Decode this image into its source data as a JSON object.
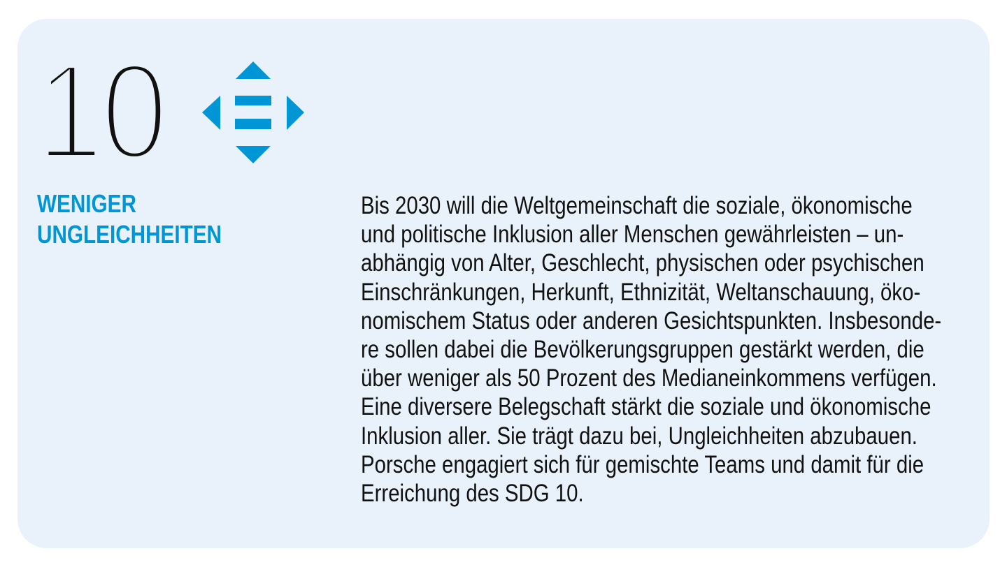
{
  "goal": {
    "number": "10",
    "icon": "reduced-inequalities-arrows-icon",
    "title_lines": [
      "WENIGER",
      "UNGLEICHHEITEN"
    ],
    "colors": {
      "accent": "#0096d6",
      "background": "#e9f2fa",
      "text": "#111111"
    }
  },
  "body": {
    "lines": [
      "Bis 2030 will die Weltgemeinschaft die soziale, ökonomische",
      "und politische Inklusion aller Menschen gewährleisten – un-",
      "abhängig von Alter, Geschlecht, physischen oder psychischen",
      "Einschränkungen, Herkunft, Ethnizität, Weltanschauung, öko-",
      "nomischem Status oder anderen Gesichtspunkten. Insbesonde-",
      "re sollen dabei die Bevölkerungsgruppen gestärkt werden, die",
      "über weniger als 50 Prozent des Medianeinkommens verfügen.",
      "Eine diversere Belegschaft stärkt die soziale und ökonomische",
      "Inklusion aller. Sie trägt dazu bei, Ungleichheiten abzubauen.",
      "Porsche engagiert sich für gemischte Teams und damit für die",
      "Erreichung des SDG 10."
    ]
  }
}
